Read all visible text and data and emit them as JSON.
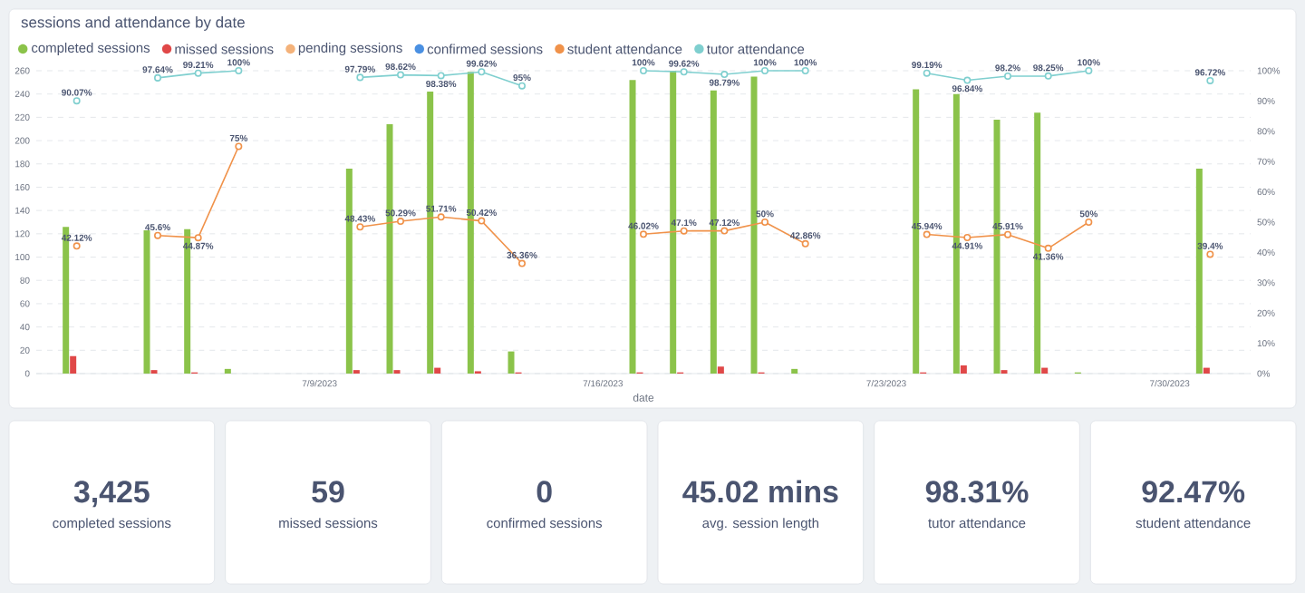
{
  "chart_data": [
    {
      "type": "bar",
      "title": "sessions and attendance by date",
      "xlabel": "date",
      "x": [
        "2023-07-03",
        "2023-07-04",
        "2023-07-05",
        "2023-07-06",
        "2023-07-07",
        "2023-07-08",
        "2023-07-09",
        "2023-07-10",
        "2023-07-11",
        "2023-07-12",
        "2023-07-13",
        "2023-07-14",
        "2023-07-15",
        "2023-07-16",
        "2023-07-17",
        "2023-07-18",
        "2023-07-19",
        "2023-07-20",
        "2023-07-21",
        "2023-07-22",
        "2023-07-23",
        "2023-07-24",
        "2023-07-25",
        "2023-07-26",
        "2023-07-27",
        "2023-07-28",
        "2023-07-29",
        "2023-07-30",
        "2023-07-31"
      ],
      "xlim": [
        "2023-07-02",
        "2023-08-01"
      ],
      "xticks": [
        {
          "value": "2023-07-09",
          "label": "7/9/2023"
        },
        {
          "value": "2023-07-16",
          "label": "7/16/2023"
        },
        {
          "value": "2023-07-23",
          "label": "7/23/2023"
        },
        {
          "value": "2023-07-30",
          "label": "7/30/2023"
        }
      ],
      "ylim": [
        0,
        260
      ],
      "yticks": [
        0,
        20,
        40,
        60,
        80,
        100,
        120,
        140,
        160,
        180,
        200,
        220,
        240,
        260
      ],
      "y2lim": [
        0,
        100
      ],
      "y2ticks": [
        {
          "value": 0,
          "label": "0%"
        },
        {
          "value": 10,
          "label": "10%"
        },
        {
          "value": 20,
          "label": "20%"
        },
        {
          "value": 30,
          "label": "30%"
        },
        {
          "value": 40,
          "label": "40%"
        },
        {
          "value": 50,
          "label": "50%"
        },
        {
          "value": 60,
          "label": "60%"
        },
        {
          "value": 70,
          "label": "70%"
        },
        {
          "value": 80,
          "label": "80%"
        },
        {
          "value": 90,
          "label": "90%"
        },
        {
          "value": 100,
          "label": "100%"
        }
      ],
      "grid": "y",
      "legend": "top left",
      "marker": "circle",
      "line_style": "solid",
      "series": [
        {
          "name": "completed sessions",
          "color": "#8bc34a",
          "values": [
            126,
            null,
            123,
            124,
            4,
            null,
            null,
            176,
            214,
            242,
            259,
            19,
            null,
            null,
            252,
            260,
            243,
            255,
            4,
            null,
            null,
            244,
            240,
            218,
            224,
            1,
            null,
            null,
            176
          ]
        },
        {
          "name": "missed sessions",
          "color": "#e04848",
          "values": [
            15,
            null,
            3,
            1,
            null,
            null,
            null,
            3,
            3,
            5,
            2,
            1,
            null,
            null,
            1,
            1,
            6,
            1,
            null,
            null,
            null,
            1,
            7,
            3,
            5,
            null,
            null,
            null,
            5
          ]
        },
        {
          "name": "pending sessions",
          "color": "#f4b27a",
          "values": [
            null,
            null,
            null,
            null,
            null,
            null,
            null,
            null,
            null,
            null,
            null,
            null,
            null,
            null,
            null,
            null,
            null,
            null,
            null,
            null,
            null,
            null,
            null,
            null,
            null,
            null,
            null,
            null,
            null
          ]
        },
        {
          "name": "confirmed sessions",
          "color": "#4a90e2",
          "values": [
            null,
            null,
            null,
            null,
            null,
            null,
            null,
            null,
            null,
            null,
            null,
            null,
            null,
            null,
            null,
            null,
            null,
            null,
            null,
            null,
            null,
            null,
            null,
            null,
            null,
            null,
            null,
            null,
            null
          ]
        },
        {
          "name": "student attendance",
          "color": "#f0924a",
          "type": "line",
          "axis": "y2",
          "values": [
            42.12,
            null,
            45.6,
            44.87,
            75,
            null,
            null,
            48.43,
            50.29,
            51.71,
            50.42,
            36.36,
            null,
            null,
            46.02,
            47.1,
            47.12,
            50,
            42.86,
            null,
            null,
            45.94,
            44.91,
            45.91,
            41.36,
            50,
            null,
            null,
            39.4
          ],
          "value_labels": [
            "42.12%",
            null,
            "45.6%",
            "44.87%",
            "75%",
            null,
            null,
            "48.43%",
            "50.29%",
            "51.71%",
            "50.42%",
            "36.36%",
            null,
            null,
            "46.02%",
            "47.1%",
            "47.12%",
            "50%",
            "42.86%",
            null,
            null,
            "45.94%",
            "44.91%",
            "45.91%",
            "41.36%",
            "50%",
            null,
            null,
            "39.4%"
          ]
        },
        {
          "name": "tutor attendance",
          "color": "#7fcfcf",
          "type": "line",
          "axis": "y2",
          "values": [
            90.07,
            null,
            97.64,
            99.21,
            100,
            null,
            null,
            97.79,
            98.62,
            98.38,
            99.62,
            95,
            null,
            null,
            100,
            99.62,
            98.79,
            100,
            100,
            null,
            null,
            99.19,
            96.84,
            98.2,
            98.25,
            100,
            null,
            null,
            96.72
          ],
          "value_labels": [
            "90.07%",
            null,
            "97.64%",
            "99.21%",
            "100%",
            null,
            null,
            "97.79%",
            "98.62%",
            "98.38%",
            "99.62%",
            "95%",
            null,
            null,
            "100%",
            "99.62%",
            "98.79%",
            "100%",
            "100%",
            null,
            null,
            "99.19%",
            "96.84%",
            "98.2%",
            "98.25%",
            "100%",
            null,
            null,
            "96.72%"
          ]
        }
      ]
    },
    {
      "type": "other",
      "categories": [
        "completed sessions",
        "missed sessions",
        "confirmed sessions",
        "avg. session length",
        "tutor attendance",
        "student attendance"
      ],
      "value_labels": [
        "3,425",
        "59",
        "0",
        "45.02 mins",
        "98.31%",
        "92.47%"
      ]
    }
  ]
}
